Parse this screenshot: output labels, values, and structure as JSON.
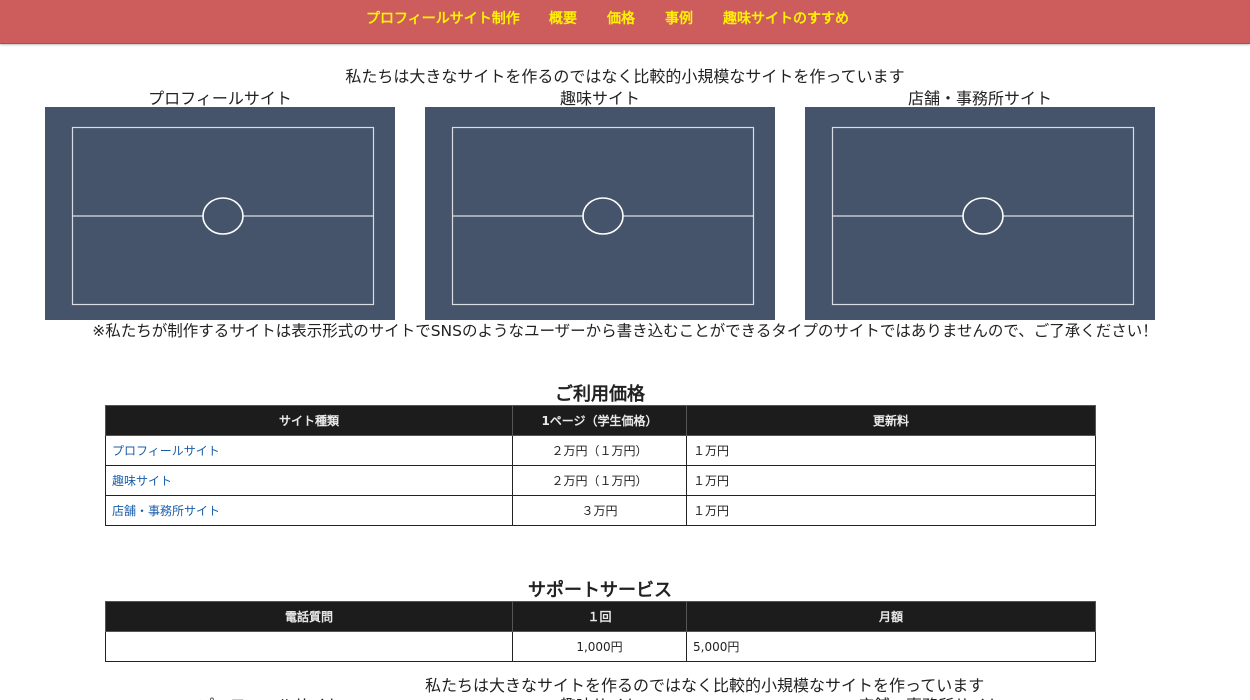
{
  "nav": {
    "items": [
      "プロフィールサイト制作",
      "概要",
      "価格",
      "事例",
      "趣味サイトのすすめ"
    ],
    "background": "#cd5c5c",
    "link_color": "#fff200"
  },
  "intro": {
    "line": "私たちは大きなサイトを作るのではなく比較的小規模なサイトを作っています"
  },
  "cards": [
    {
      "title": "プロフィールサイト"
    },
    {
      "title": "趣味サイト"
    },
    {
      "title": "店舗・事務所サイト"
    }
  ],
  "card_color": "#45546b",
  "note": "※私たちが制作するサイトは表示形式のサイトでSNSのようなユーザーから書き込むことができるタイプのサイトではありませんので、ご了承ください！",
  "pricing": {
    "title": "ご利用価格",
    "headers": [
      "サイト種類",
      "1ページ（学生価格）",
      "更新料"
    ],
    "rows": [
      [
        "プロフィールサイト",
        "２万円（１万円）",
        "１万円"
      ],
      [
        "趣味サイト",
        "２万円（１万円）",
        "１万円"
      ],
      [
        "店舗・事務所サイト",
        "３万円",
        "１万円"
      ]
    ]
  },
  "support": {
    "title": "サポートサービス",
    "headers": [
      "電話質問",
      "１回",
      "月額"
    ],
    "row": [
      "",
      "1,000円",
      "5,000円"
    ]
  },
  "repeat": {
    "line": "私たちは大きなサイトを作るのではなく比較的小規模なサイトを作っています",
    "cut_titles": [
      "プロフィールサイト",
      "趣味サイト",
      "店舗・事務所サイト"
    ]
  }
}
